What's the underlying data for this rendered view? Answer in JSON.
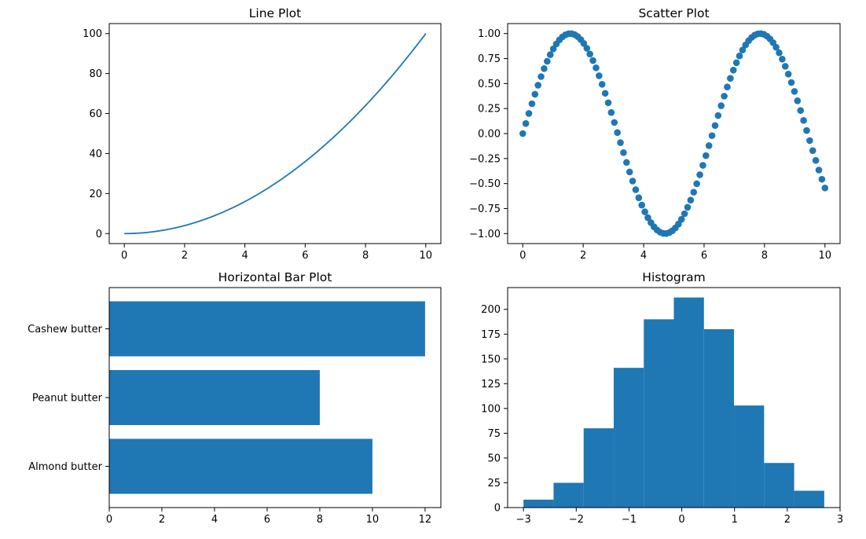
{
  "chart_data": [
    {
      "type": "line",
      "title": "Line Plot",
      "xlabel": "",
      "ylabel": "",
      "xlim": [
        -0.5,
        10.5
      ],
      "ylim": [
        -5,
        105
      ],
      "xticks": [
        0,
        2,
        4,
        6,
        8,
        10
      ],
      "yticks": [
        0,
        20,
        40,
        60,
        80,
        100
      ],
      "function": "x^2",
      "x": [
        0,
        0.5,
        1,
        1.5,
        2,
        2.5,
        3,
        3.5,
        4,
        4.5,
        5,
        5.5,
        6,
        6.5,
        7,
        7.5,
        8,
        8.5,
        9,
        9.5,
        10
      ],
      "y": [
        0,
        0.25,
        1,
        2.25,
        4,
        6.25,
        9,
        12.25,
        16,
        20.25,
        25,
        30.25,
        36,
        42.25,
        49,
        56.25,
        64,
        72.25,
        81,
        90.25,
        100
      ],
      "color": "#1f77b4",
      "grid": false,
      "legend": "none"
    },
    {
      "type": "scatter",
      "title": "Scatter Plot",
      "xlabel": "",
      "ylabel": "",
      "xlim": [
        -0.5,
        10.5
      ],
      "ylim": [
        -1.1,
        1.1
      ],
      "xticks": [
        0,
        2,
        4,
        6,
        8,
        10
      ],
      "yticks": [
        -1.0,
        -0.75,
        -0.5,
        -0.25,
        0.0,
        0.25,
        0.5,
        0.75,
        1.0
      ],
      "function": "sin(x)",
      "x_range": [
        0,
        10
      ],
      "num_points": 100,
      "color": "#1f77b4",
      "grid": false,
      "legend": "none"
    },
    {
      "type": "bar",
      "orientation": "horizontal",
      "title": "Horizontal Bar Plot",
      "xlabel": "",
      "ylabel": "",
      "categories": [
        "Almond butter",
        "Peanut butter",
        "Cashew butter"
      ],
      "values": [
        10,
        8,
        12
      ],
      "xlim": [
        0,
        12.6
      ],
      "xticks": [
        0,
        2,
        4,
        6,
        8,
        10,
        12
      ],
      "color": "#1f77b4",
      "grid": false,
      "legend": "none"
    },
    {
      "type": "bar",
      "subtype": "histogram",
      "title": "Histogram",
      "xlabel": "",
      "ylabel": "",
      "bin_edges": [
        -3.0,
        -2.43,
        -1.86,
        -1.29,
        -0.72,
        -0.15,
        0.42,
        0.99,
        1.56,
        2.13,
        2.7
      ],
      "counts": [
        8,
        25,
        80,
        141,
        190,
        212,
        180,
        103,
        45,
        17
      ],
      "xlim": [
        -3.3,
        3.0
      ],
      "ylim": [
        0,
        222
      ],
      "xticks": [
        -3,
        -2,
        -1,
        0,
        1,
        2,
        3
      ],
      "yticks": [
        0,
        25,
        50,
        75,
        100,
        125,
        150,
        175,
        200
      ],
      "color": "#1f77b4",
      "grid": false,
      "legend": "none"
    }
  ]
}
